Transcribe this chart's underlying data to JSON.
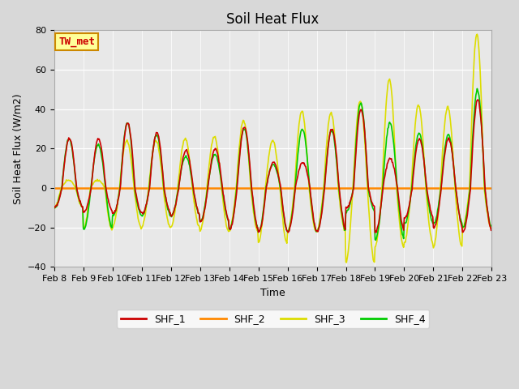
{
  "title": "Soil Heat Flux",
  "ylabel": "Soil Heat Flux (W/m2)",
  "xlabel": "Time",
  "ylim": [
    -40,
    80
  ],
  "yticks": [
    -40,
    -20,
    0,
    20,
    40,
    60,
    80
  ],
  "colors": {
    "SHF_1": "#cc0000",
    "SHF_2": "#ff8800",
    "SHF_3": "#dddd00",
    "SHF_4": "#00cc00"
  },
  "annotation_text": "TW_met",
  "annotation_color": "#cc0000",
  "annotation_bg": "#ffff99",
  "annotation_edge": "#cc8800",
  "fig_bg": "#d8d8d8",
  "plot_bg": "#e8e8e8",
  "n_days": 15,
  "start_day": 8,
  "points_per_day": 48,
  "title_fontsize": 12,
  "axis_fontsize": 9,
  "tick_fontsize": 8,
  "legend_fontsize": 9
}
